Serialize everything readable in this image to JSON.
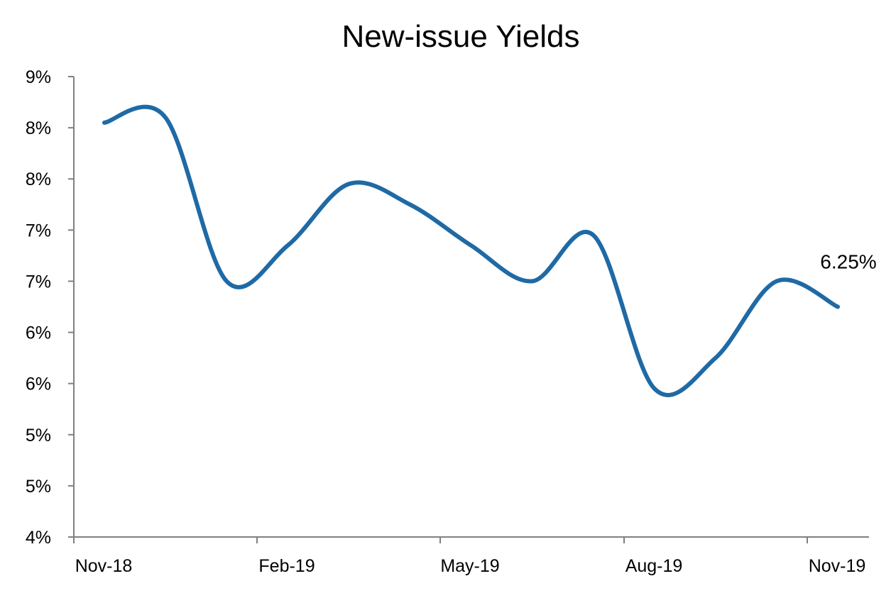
{
  "chart_data": {
    "type": "line",
    "title": "New-issue Yields",
    "xlabel": "",
    "ylabel": "",
    "y_tick_labels": [
      "4%",
      "5%",
      "5%",
      "6%",
      "6%",
      "7%",
      "7%",
      "8%",
      "8%",
      "9%"
    ],
    "ylim": [
      4.0,
      8.5
    ],
    "x_tick_labels": [
      "Nov-18",
      "Feb-19",
      "May-19",
      "Aug-19",
      "Nov-19"
    ],
    "grid": false,
    "legend": "none",
    "series": [
      {
        "color": "#1F6AA5",
        "x": [
          "Nov-18",
          "Dec-18",
          "Jan-19",
          "Feb-19",
          "Mar-19",
          "Apr-19",
          "May-19",
          "Jun-19",
          "Jul-19",
          "Aug-19",
          "Sep-19",
          "Oct-19",
          "Nov-19"
        ],
        "values": [
          8.05,
          8.1,
          6.5,
          6.85,
          7.45,
          7.25,
          6.85,
          6.5,
          6.95,
          5.45,
          5.75,
          6.5,
          6.25
        ]
      }
    ],
    "annotations": [
      {
        "text": "6.25%",
        "x": "Nov-19",
        "y": 6.25
      }
    ]
  }
}
